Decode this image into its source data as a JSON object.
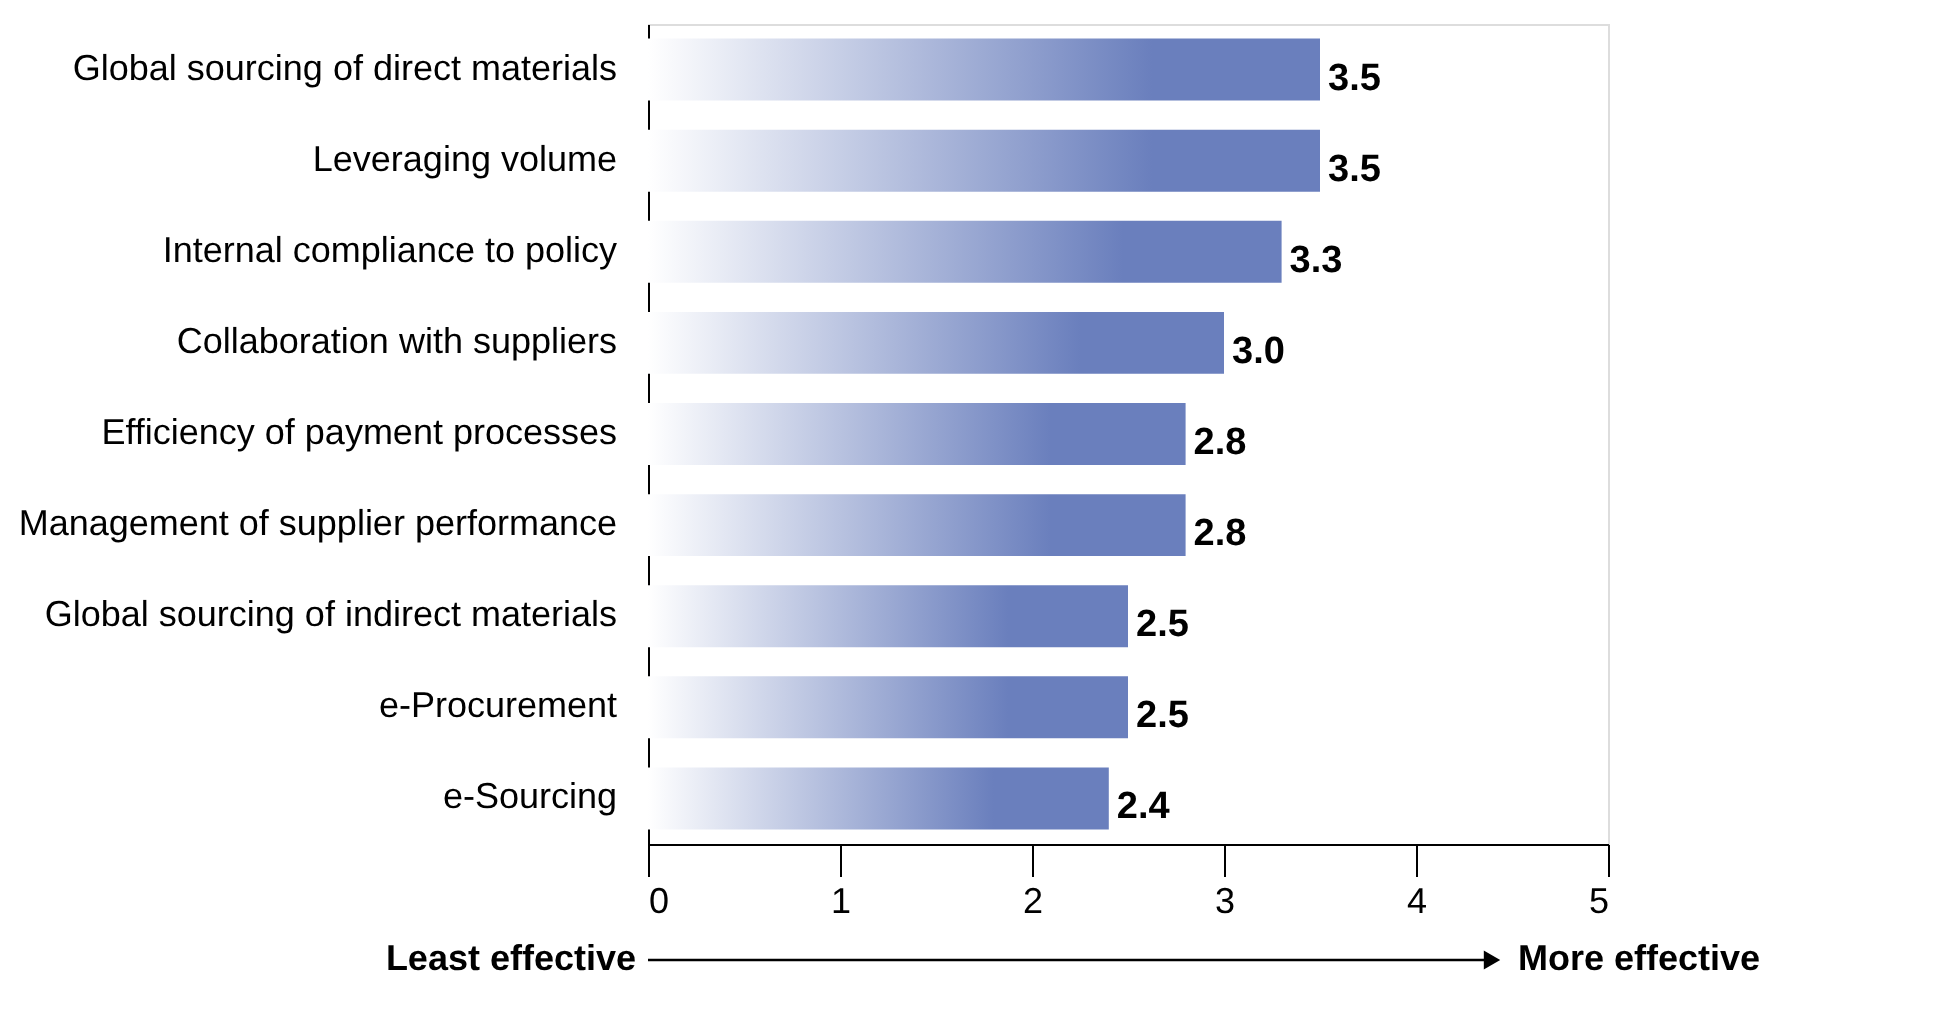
{
  "chart_data": {
    "type": "bar",
    "orientation": "horizontal",
    "categories": [
      "Global sourcing of direct materials",
      "Leveraging volume",
      "Internal compliance to policy",
      "Collaboration with suppliers",
      "Efficiency of payment processes",
      "Management of supplier performance",
      "Global sourcing of indirect materials",
      "e-Procurement",
      "e-Sourcing"
    ],
    "values": [
      3.5,
      3.5,
      3.3,
      3.0,
      2.8,
      2.8,
      2.5,
      2.5,
      2.4
    ],
    "value_labels": [
      "3.5",
      "3.5",
      "3.3",
      "3.0",
      "2.8",
      "2.8",
      "2.5",
      "2.5",
      "2.4"
    ],
    "color": "#6a7fbd",
    "xlim": [
      0,
      5
    ],
    "xticks": [
      0,
      1,
      2,
      3,
      4,
      5
    ],
    "grid": false,
    "annotations": [
      "Least effective",
      "More effective"
    ]
  }
}
